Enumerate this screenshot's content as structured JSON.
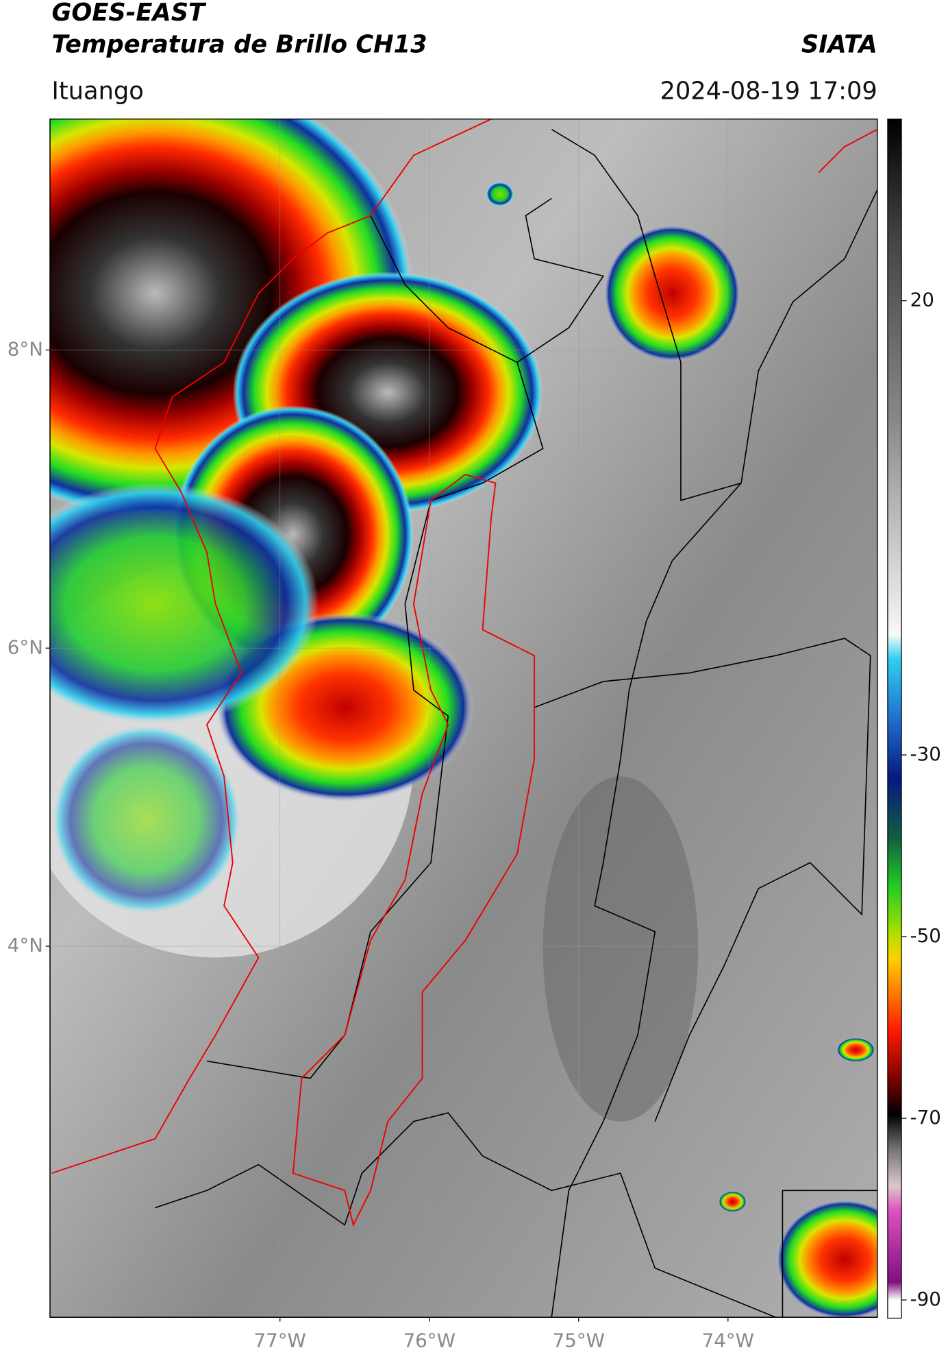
{
  "header": {
    "title": "GOES-EAST",
    "subtitle": "Temperatura de Brillo CH13",
    "source": "SIATA",
    "location": "Ituango",
    "datetime": "2024-08-19 17:09"
  },
  "map": {
    "xlim": [
      -78.54,
      -73.0
    ],
    "ylim": [
      1.51,
      9.55
    ],
    "xticks": [
      {
        "value": -77,
        "label": "77°W"
      },
      {
        "value": -76,
        "label": "76°W"
      },
      {
        "value": -75,
        "label": "75°W"
      },
      {
        "value": -74,
        "label": "74°W"
      }
    ],
    "yticks": [
      {
        "value": 8,
        "label": "8°N"
      },
      {
        "value": 6,
        "label": "6°N"
      },
      {
        "value": 4,
        "label": "4°N"
      }
    ],
    "grid": true
  },
  "colorbar": {
    "clim": [
      -92,
      40
    ],
    "ticks": [
      20,
      -30,
      -50,
      -70,
      -90
    ]
  }
}
